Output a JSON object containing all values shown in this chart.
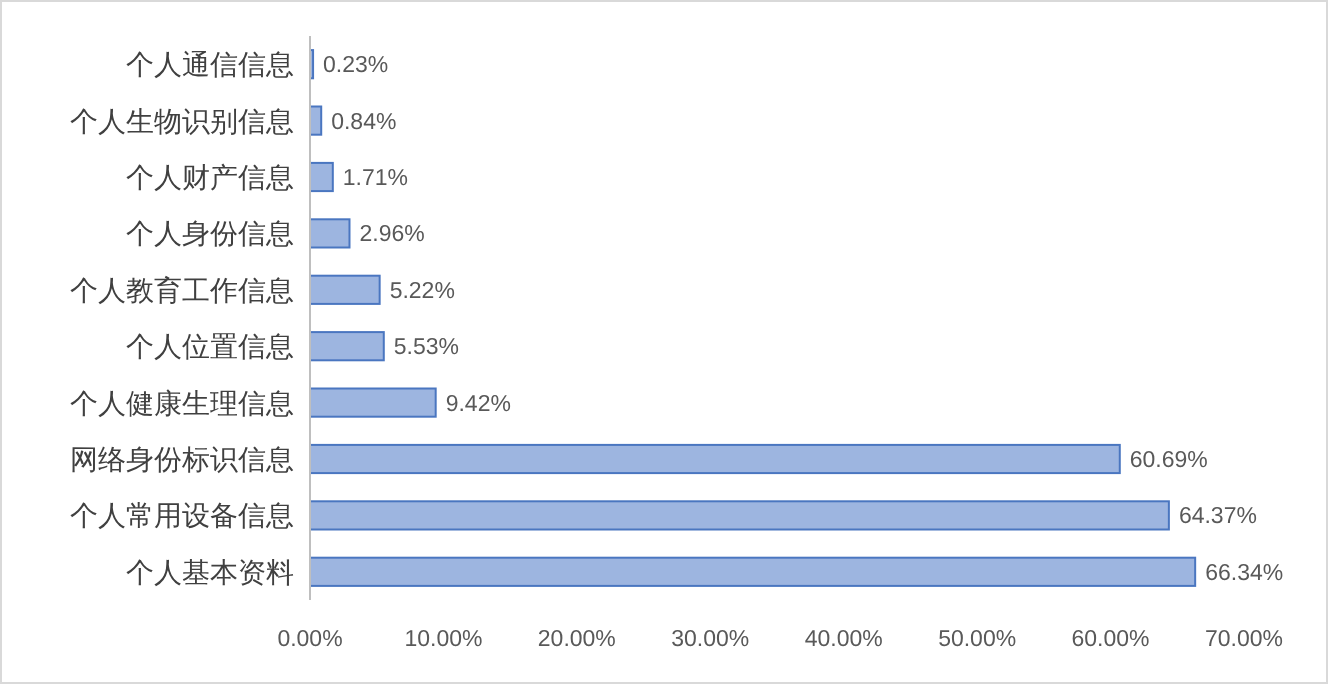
{
  "chart_data": {
    "type": "bar",
    "orientation": "horizontal",
    "categories": [
      "个人通信信息",
      "个人生物识别信息",
      "个人财产信息",
      "个人身份信息",
      "个人教育工作信息",
      "个人位置信息",
      "个人健康生理信息",
      "网络身份标识信息",
      "个人常用设备信息",
      "个人基本资料"
    ],
    "values": [
      0.23,
      0.84,
      1.71,
      2.96,
      5.22,
      5.53,
      9.42,
      60.69,
      64.37,
      66.34
    ],
    "value_labels": [
      "0.23%",
      "0.84%",
      "1.71%",
      "2.96%",
      "5.22%",
      "5.53%",
      "9.42%",
      "60.69%",
      "64.37%",
      "66.34%"
    ],
    "color": "#9db5e0",
    "xlim": [
      0,
      70
    ],
    "xticks": [
      {
        "value": 0,
        "label": "0.00%"
      },
      {
        "value": 10,
        "label": "10.00%"
      },
      {
        "value": 20,
        "label": "20.00%"
      },
      {
        "value": 30,
        "label": "30.00%"
      },
      {
        "value": 40,
        "label": "40.00%"
      },
      {
        "value": 50,
        "label": "50.00%"
      },
      {
        "value": 60,
        "label": "60.00%"
      },
      {
        "value": 70,
        "label": "70.00%"
      }
    ],
    "grid": false
  }
}
